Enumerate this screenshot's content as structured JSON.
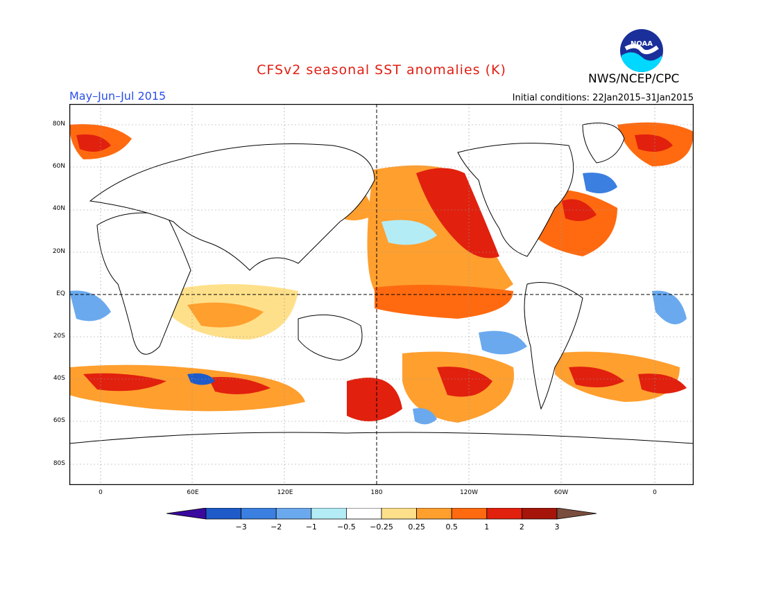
{
  "title": "CFSv2 seasonal SST anomalies (K)",
  "period": "May–Jun–Jul 2015",
  "org": "NWS/NCEP/CPC",
  "init_conditions": "Initial conditions: 22Jan2015–31Jan2015",
  "logo_text": "NOAA",
  "colors": {
    "title": "#e01e12",
    "period": "#2a4ee8",
    "coast": "#000000",
    "ocean": "#ffffff"
  },
  "lat_ticks": [
    "80N",
    "60N",
    "40N",
    "20N",
    "EQ",
    "20S",
    "40S",
    "60S",
    "80S"
  ],
  "lon_ticks": [
    "0",
    "60E",
    "120E",
    "180",
    "120W",
    "60W",
    "0"
  ],
  "colorbar": {
    "labels": [
      "−3",
      "−2",
      "−1",
      "−0.5",
      "−0.25",
      "0.25",
      "0.5",
      "1",
      "2",
      "3"
    ],
    "colors": [
      "#3a0a9e",
      "#1e5bc8",
      "#3b7fe0",
      "#6aa9ee",
      "#b3ecf5",
      "#ffffff",
      "#ffe08a",
      "#ff9f2e",
      "#ff6a10",
      "#e1200e",
      "#a5150a",
      "#7a4e3e"
    ]
  }
}
